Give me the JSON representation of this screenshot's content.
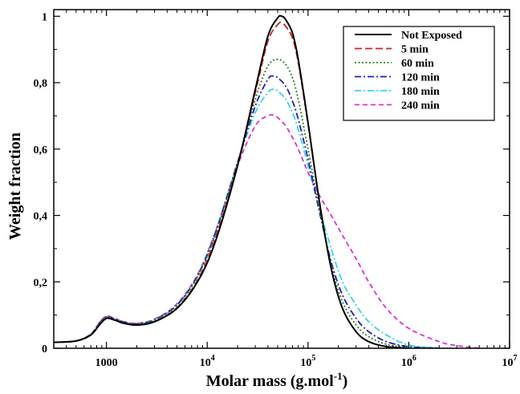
{
  "chart_data": {
    "type": "line",
    "title": "",
    "xlabel": "Molar mass (g.mol",
    "xlabel_sup": "-1",
    "xlabel_suffix": ")",
    "ylabel": "Weight fraction",
    "x_scale": "log",
    "xlim": [
      300,
      10000000
    ],
    "ylim": [
      0,
      1.02
    ],
    "grid": false,
    "legend_position": "top-right",
    "x_ticks": [
      {
        "value": 1000,
        "base": "1000",
        "exp": ""
      },
      {
        "value": 10000,
        "base": "10",
        "exp": "4"
      },
      {
        "value": 100000,
        "base": "10",
        "exp": "5"
      },
      {
        "value": 1000000,
        "base": "10",
        "exp": "6"
      },
      {
        "value": 10000000,
        "base": "10",
        "exp": "7"
      }
    ],
    "y_ticks": [
      {
        "value": 0,
        "label": "0"
      },
      {
        "value": 0.2,
        "label": "0,2"
      },
      {
        "value": 0.4,
        "label": "0,4"
      },
      {
        "value": 0.6,
        "label": "0,6"
      },
      {
        "value": 0.8,
        "label": "0,8"
      },
      {
        "value": 1.0,
        "label": "1"
      }
    ],
    "series": [
      {
        "name": "Not Exposed",
        "color": "#000000",
        "dash": "solid",
        "x": [
          300,
          500,
          700,
          850,
          1000,
          1200,
          1500,
          2000,
          3000,
          5000,
          8000,
          12000,
          20000,
          30000,
          40000,
          50000,
          55000,
          60000,
          70000,
          80000,
          100000,
          130000,
          170000,
          220000,
          300000,
          400000,
          600000,
          1000000
        ],
        "y": [
          0.018,
          0.022,
          0.04,
          0.07,
          0.09,
          0.085,
          0.075,
          0.07,
          0.08,
          0.12,
          0.2,
          0.32,
          0.55,
          0.78,
          0.94,
          0.995,
          1.0,
          0.99,
          0.95,
          0.87,
          0.68,
          0.44,
          0.24,
          0.12,
          0.05,
          0.02,
          0.005,
          0.0
        ]
      },
      {
        "name": "5 min",
        "color": "#cc2222",
        "dash": "longdash",
        "x": [
          300,
          500,
          700,
          850,
          1000,
          1200,
          1500,
          2000,
          3000,
          5000,
          8000,
          12000,
          20000,
          30000,
          40000,
          50000,
          55000,
          60000,
          70000,
          80000,
          100000,
          130000,
          170000,
          220000,
          300000,
          400000,
          600000,
          1000000
        ],
        "y": [
          0.018,
          0.022,
          0.04,
          0.072,
          0.092,
          0.086,
          0.076,
          0.071,
          0.081,
          0.122,
          0.205,
          0.33,
          0.55,
          0.77,
          0.925,
          0.975,
          0.98,
          0.97,
          0.935,
          0.86,
          0.675,
          0.44,
          0.24,
          0.12,
          0.05,
          0.02,
          0.005,
          0.0
        ]
      },
      {
        "name": "60 min",
        "color": "#2e7d1e",
        "dash": "dotted",
        "x": [
          300,
          500,
          700,
          850,
          1000,
          1200,
          1500,
          2000,
          3000,
          5000,
          8000,
          12000,
          20000,
          30000,
          40000,
          50000,
          60000,
          70000,
          80000,
          100000,
          130000,
          170000,
          220000,
          300000,
          400000,
          600000,
          1000000,
          1500000
        ],
        "y": [
          0.018,
          0.022,
          0.042,
          0.075,
          0.094,
          0.088,
          0.078,
          0.073,
          0.085,
          0.128,
          0.215,
          0.34,
          0.56,
          0.75,
          0.85,
          0.87,
          0.855,
          0.815,
          0.75,
          0.6,
          0.42,
          0.25,
          0.14,
          0.07,
          0.035,
          0.012,
          0.002,
          0.0
        ]
      },
      {
        "name": "120 min",
        "color": "#1f1fb4",
        "dash": "dashdot",
        "x": [
          300,
          500,
          700,
          850,
          1000,
          1200,
          1500,
          2000,
          3000,
          5000,
          8000,
          12000,
          20000,
          30000,
          40000,
          45000,
          50000,
          60000,
          70000,
          80000,
          100000,
          130000,
          170000,
          220000,
          300000,
          400000,
          600000,
          1000000,
          2000000
        ],
        "y": [
          0.018,
          0.022,
          0.042,
          0.076,
          0.095,
          0.089,
          0.079,
          0.074,
          0.086,
          0.13,
          0.218,
          0.345,
          0.56,
          0.73,
          0.81,
          0.82,
          0.815,
          0.79,
          0.745,
          0.69,
          0.57,
          0.41,
          0.26,
          0.16,
          0.09,
          0.05,
          0.02,
          0.005,
          0.0
        ]
      },
      {
        "name": "180 min",
        "color": "#33d6e6",
        "dash": "dashdot",
        "x": [
          300,
          500,
          700,
          850,
          1000,
          1200,
          1500,
          2000,
          3000,
          5000,
          8000,
          12000,
          20000,
          30000,
          40000,
          45000,
          50000,
          60000,
          70000,
          80000,
          100000,
          130000,
          170000,
          220000,
          300000,
          400000,
          600000,
          1000000,
          2000000,
          3000000
        ],
        "y": [
          0.018,
          0.022,
          0.042,
          0.076,
          0.095,
          0.089,
          0.079,
          0.074,
          0.087,
          0.132,
          0.22,
          0.35,
          0.56,
          0.71,
          0.77,
          0.78,
          0.775,
          0.75,
          0.71,
          0.66,
          0.55,
          0.42,
          0.3,
          0.2,
          0.13,
          0.08,
          0.04,
          0.01,
          0.001,
          0.0
        ]
      },
      {
        "name": "240 min",
        "color": "#d633d6",
        "dash": "dashed",
        "x": [
          300,
          500,
          700,
          850,
          1000,
          1200,
          1500,
          2000,
          3000,
          5000,
          8000,
          12000,
          20000,
          30000,
          40000,
          45000,
          50000,
          60000,
          70000,
          80000,
          100000,
          130000,
          170000,
          220000,
          300000,
          400000,
          600000,
          1000000,
          2000000,
          3000000,
          5000000
        ],
        "y": [
          0.018,
          0.022,
          0.043,
          0.077,
          0.097,
          0.09,
          0.08,
          0.075,
          0.088,
          0.134,
          0.222,
          0.35,
          0.55,
          0.67,
          0.7,
          0.702,
          0.695,
          0.67,
          0.635,
          0.6,
          0.53,
          0.46,
          0.4,
          0.34,
          0.27,
          0.2,
          0.12,
          0.06,
          0.02,
          0.008,
          0.0
        ]
      }
    ]
  }
}
